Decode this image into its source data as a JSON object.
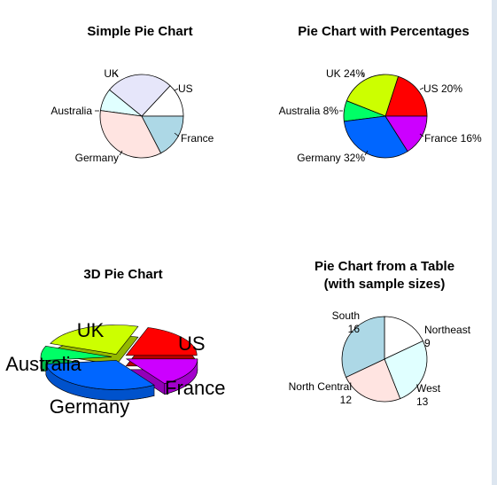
{
  "colors": {
    "page_bg": "#ffffff",
    "frame_bg": "#dde6f0",
    "pastel": [
      "#ffffff",
      "#e6e6fa",
      "#e0ffff",
      "#ffe4e1",
      "#add8e6"
    ],
    "rainbow": [
      "#ff0000",
      "#ccff00",
      "#00ff66",
      "#0066ff",
      "#cc00ff"
    ],
    "table_pie": [
      "#ffffff",
      "#e0ffff",
      "#ffe4e1",
      "#add8e6"
    ]
  },
  "chart_data": [
    {
      "type": "pie",
      "title": "Simple Pie Chart",
      "slices": [
        {
          "label": "US",
          "value": 12
        },
        {
          "label": "UK",
          "value": 24
        },
        {
          "label": "Australia",
          "value": 8
        },
        {
          "label": "Germany",
          "value": 32
        },
        {
          "label": "France",
          "value": 16
        }
      ],
      "labels": [
        "US",
        "UK",
        "Australia",
        "Germany",
        "France"
      ],
      "palette": "pastel"
    },
    {
      "type": "pie",
      "title": "Pie Chart with Percentages",
      "slices": [
        {
          "label": "US 20%",
          "value": 20
        },
        {
          "label": "UK 24%",
          "value": 24
        },
        {
          "label": "Australia 8%",
          "value": 8
        },
        {
          "label": "Germany 32%",
          "value": 32
        },
        {
          "label": "France 16%",
          "value": 16
        }
      ],
      "labels": [
        "US 20%",
        "UK 24%",
        "Australia 8%",
        "Germany 32%",
        "France 16%"
      ],
      "palette": "rainbow"
    },
    {
      "type": "pie",
      "title": "3D Pie Chart",
      "style": "3d-exploded",
      "slices": [
        {
          "label": "US",
          "value": 20
        },
        {
          "label": "UK",
          "value": 24
        },
        {
          "label": "Australia",
          "value": 8
        },
        {
          "label": "Germany",
          "value": 32
        },
        {
          "label": "France",
          "value": 16
        }
      ],
      "labels": [
        "US",
        "UK",
        "Australia",
        "Germany",
        "France"
      ],
      "palette": "rainbow"
    },
    {
      "type": "pie",
      "title": "Pie Chart from a Table",
      "subtitle": "(with sample sizes)",
      "slices": [
        {
          "label": "Northeast",
          "value": 9
        },
        {
          "label": "West",
          "value": 13
        },
        {
          "label": "North Central",
          "value": 12
        },
        {
          "label": "South",
          "value": 16
        }
      ],
      "labels": [
        {
          "name": "Northeast",
          "n": "9"
        },
        {
          "name": "West",
          "n": "13"
        },
        {
          "name": "North Central",
          "n": "12"
        },
        {
          "name": "South",
          "n": "16"
        }
      ],
      "palette": "table_pie"
    }
  ]
}
